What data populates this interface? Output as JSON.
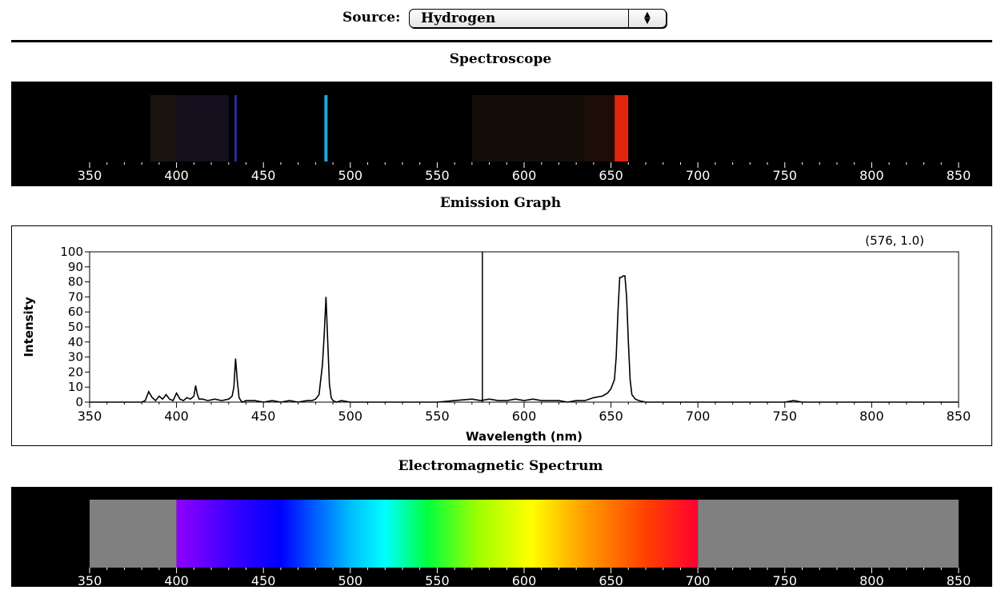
{
  "source": {
    "label": "Source:",
    "value": "Hydrogen",
    "arrow_icon": "up-down-arrows-icon"
  },
  "sections": {
    "spectroscope": "Spectroscope",
    "emission": "Emission Graph",
    "em_spectrum": "Electromagnetic Spectrum"
  },
  "wavelength_ticks": [
    "350",
    "400",
    "450",
    "500",
    "550",
    "600",
    "650",
    "700",
    "750",
    "800",
    "850"
  ],
  "cursor_readout": "(576, 1.0)",
  "colors": {
    "panel_bg": "#000000",
    "h_alpha": "#e0250c",
    "h_beta": "#1ca8dc",
    "h_gamma": "#2a2a9a",
    "gray_band": "#808080"
  },
  "spectroscope_lines": [
    {
      "nm": 434,
      "color": "#2a2a9a",
      "width": 3
    },
    {
      "nm": 486,
      "color": "#1ca8dc",
      "width": 4
    },
    {
      "nm": 656,
      "color": "#e0250c",
      "width": 17
    }
  ],
  "chart_data": {
    "type": "line",
    "title": "Emission Graph",
    "xlabel": "Wavelength (nm)",
    "ylabel": "Intensity",
    "xlim": [
      350,
      850
    ],
    "ylim": [
      0,
      100
    ],
    "x_ticks": [
      350,
      400,
      450,
      500,
      550,
      600,
      650,
      700,
      750,
      800,
      850
    ],
    "y_ticks": [
      0,
      10,
      20,
      30,
      40,
      50,
      60,
      70,
      80,
      90,
      100
    ],
    "cursor": {
      "x": 576,
      "y": 1.0
    },
    "series": [
      {
        "x": [
          350,
          380,
          382,
          384,
          386,
          388,
          390,
          392,
          394,
          396,
          398,
          400,
          402,
          404,
          406,
          408,
          410,
          411,
          412,
          413,
          415,
          418,
          422,
          426,
          430,
          432,
          433,
          434,
          435,
          436,
          437,
          438,
          440,
          445,
          450,
          455,
          460,
          465,
          470,
          475,
          478,
          480,
          482,
          484,
          485,
          486,
          487,
          488,
          489,
          490,
          492,
          495,
          500,
          510,
          520,
          530,
          540,
          550,
          560,
          570,
          575,
          580,
          585,
          590,
          595,
          600,
          605,
          610,
          615,
          620,
          625,
          630,
          635,
          640,
          645,
          648,
          650,
          652,
          653,
          654,
          655,
          656,
          657,
          658,
          659,
          660,
          661,
          662,
          664,
          666,
          670,
          680,
          700,
          720,
          750,
          755,
          760,
          800,
          850
        ],
        "y": [
          0,
          0,
          1,
          7,
          3,
          1,
          4,
          2,
          5,
          2,
          1,
          6,
          2,
          1,
          3,
          2,
          4,
          11,
          5,
          2,
          2,
          1,
          2,
          1,
          2,
          4,
          10,
          29,
          14,
          3,
          1,
          0,
          1,
          1,
          0,
          1,
          0,
          1,
          0,
          1,
          1,
          2,
          5,
          25,
          45,
          70,
          40,
          12,
          3,
          1,
          0,
          1,
          0,
          0,
          0,
          0,
          0,
          0,
          1,
          2,
          1,
          2,
          1,
          1,
          2,
          1,
          2,
          1,
          1,
          1,
          0,
          1,
          1,
          3,
          4,
          6,
          9,
          15,
          30,
          60,
          83,
          83,
          84,
          84,
          70,
          40,
          15,
          5,
          2,
          1,
          0,
          0,
          0,
          0,
          0,
          1,
          0,
          0,
          0
        ]
      }
    ]
  }
}
